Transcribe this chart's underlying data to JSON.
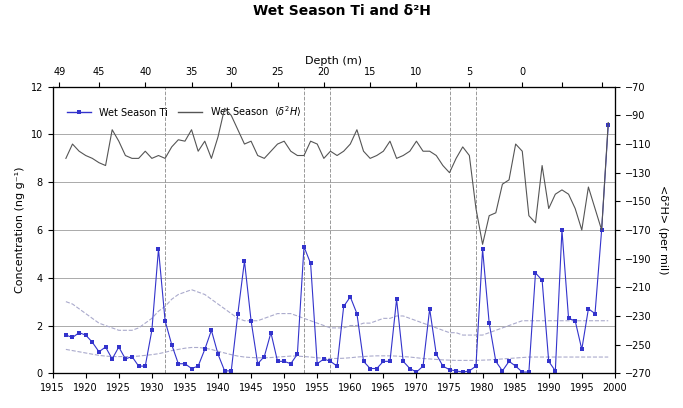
{
  "title": "Wet Season Ti and δ²H",
  "xlabel_top": "Depth (m)",
  "ylabel_left": "Concentration (ng g⁻¹)",
  "ylabel_right": "<δ²H> (per mil)",
  "xlim": [
    1915,
    2000
  ],
  "ylim_left": [
    0,
    12
  ],
  "ylim_right": [
    -270,
    -70
  ],
  "yticks_left": [
    0,
    2,
    4,
    6,
    8,
    10,
    12
  ],
  "yticks_right": [
    -270,
    -250,
    -230,
    -210,
    -190,
    -170,
    -150,
    -130,
    -110,
    -90,
    -70
  ],
  "xticks_bottom": [
    1915,
    1920,
    1925,
    1930,
    1935,
    1940,
    1945,
    1950,
    1955,
    1960,
    1965,
    1970,
    1975,
    1980,
    1985,
    1990,
    1995,
    2000
  ],
  "depth_tick_years": [
    1916,
    1922,
    1929,
    1936,
    1942,
    1949,
    1956,
    1963,
    1970,
    1978,
    1986,
    1992,
    1998
  ],
  "depth_tick_labels": [
    "49",
    "45",
    "40",
    "35",
    "30",
    "25",
    "20",
    "15",
    "10",
    "5",
    "0",
    "",
    ""
  ],
  "vlines": [
    1932,
    1953,
    1957,
    1975,
    1979
  ],
  "ti_color": "#3333cc",
  "d2h_color": "#555555",
  "envelope_color": "#aaaacc",
  "background_color": "#ffffff",
  "ti_years": [
    1917,
    1918,
    1919,
    1920,
    1921,
    1922,
    1923,
    1924,
    1925,
    1926,
    1927,
    1928,
    1929,
    1930,
    1931,
    1932,
    1933,
    1934,
    1935,
    1936,
    1937,
    1938,
    1939,
    1940,
    1941,
    1942,
    1943,
    1944,
    1945,
    1946,
    1947,
    1948,
    1949,
    1950,
    1951,
    1952,
    1953,
    1954,
    1955,
    1956,
    1957,
    1958,
    1959,
    1960,
    1961,
    1962,
    1963,
    1964,
    1965,
    1966,
    1967,
    1968,
    1969,
    1970,
    1971,
    1972,
    1973,
    1974,
    1975,
    1976,
    1977,
    1978,
    1979,
    1980,
    1981,
    1982,
    1983,
    1984,
    1985,
    1986,
    1987,
    1988,
    1989,
    1990,
    1991,
    1992,
    1993,
    1994,
    1995,
    1996,
    1997,
    1998,
    1999
  ],
  "ti_values": [
    1.6,
    1.5,
    1.7,
    1.6,
    1.3,
    0.9,
    1.1,
    0.6,
    1.1,
    0.6,
    0.7,
    0.3,
    0.3,
    1.8,
    5.2,
    2.2,
    1.2,
    0.4,
    0.4,
    0.2,
    0.3,
    1.0,
    1.8,
    0.8,
    0.1,
    0.1,
    2.5,
    4.7,
    2.2,
    0.4,
    0.7,
    1.7,
    0.5,
    0.5,
    0.4,
    0.8,
    5.3,
    4.6,
    0.4,
    0.6,
    0.5,
    0.3,
    2.8,
    3.2,
    2.5,
    0.5,
    0.2,
    0.2,
    0.5,
    0.5,
    3.1,
    0.5,
    0.2,
    0.05,
    0.3,
    2.7,
    0.8,
    0.3,
    0.15,
    0.1,
    0.05,
    0.1,
    0.3,
    5.2,
    2.1,
    0.5,
    0.1,
    0.5,
    0.3,
    0.05,
    0.05,
    4.2,
    3.9,
    0.5,
    0.1,
    6.0,
    2.3,
    2.2,
    1.0,
    2.7,
    2.5,
    6.0,
    10.4
  ],
  "d2h_years": [
    1917,
    1918,
    1919,
    1920,
    1921,
    1922,
    1923,
    1924,
    1925,
    1926,
    1927,
    1928,
    1929,
    1930,
    1931,
    1932,
    1933,
    1934,
    1935,
    1936,
    1937,
    1938,
    1939,
    1940,
    1941,
    1942,
    1943,
    1944,
    1945,
    1946,
    1947,
    1948,
    1949,
    1950,
    1951,
    1952,
    1953,
    1954,
    1955,
    1956,
    1957,
    1958,
    1959,
    1960,
    1961,
    1962,
    1963,
    1964,
    1965,
    1966,
    1967,
    1968,
    1969,
    1970,
    1971,
    1972,
    1973,
    1974,
    1975,
    1976,
    1977,
    1978,
    1979,
    1980,
    1981,
    1982,
    1983,
    1984,
    1985,
    1986,
    1987,
    1988,
    1989,
    1990,
    1991,
    1992,
    1993,
    1994,
    1995,
    1996,
    1997,
    1998,
    1999
  ],
  "d2h_values": [
    -120,
    -110,
    -115,
    -118,
    -120,
    -123,
    -125,
    -100,
    -108,
    -118,
    -120,
    -120,
    -115,
    -120,
    -118,
    -120,
    -112,
    -107,
    -108,
    -100,
    -115,
    -108,
    -120,
    -105,
    -85,
    -90,
    -100,
    -110,
    -108,
    -118,
    -120,
    -115,
    -110,
    -108,
    -115,
    -118,
    -118,
    -108,
    -110,
    -120,
    -115,
    -118,
    -115,
    -110,
    -100,
    -115,
    -120,
    -118,
    -115,
    -108,
    -120,
    -118,
    -115,
    -108,
    -115,
    -115,
    -118,
    -125,
    -130,
    -120,
    -112,
    -118,
    -155,
    -180,
    -160,
    -158,
    -138,
    -135,
    -110,
    -115,
    -160,
    -165,
    -125,
    -155,
    -145,
    -142,
    -145,
    -155,
    -170,
    -140,
    -155,
    -170,
    -95
  ],
  "envelope_upper": [
    3.0,
    2.9,
    2.7,
    2.5,
    2.3,
    2.1,
    2.0,
    1.9,
    1.8,
    1.8,
    1.8,
    1.9,
    2.1,
    2.3,
    2.6,
    2.8,
    3.1,
    3.3,
    3.4,
    3.5,
    3.4,
    3.3,
    3.1,
    2.9,
    2.7,
    2.5,
    2.3,
    2.2,
    2.2,
    2.2,
    2.3,
    2.4,
    2.5,
    2.5,
    2.5,
    2.4,
    2.3,
    2.2,
    2.1,
    2.0,
    1.9,
    1.9,
    1.9,
    2.0,
    2.0,
    2.1,
    2.1,
    2.2,
    2.3,
    2.3,
    2.4,
    2.4,
    2.3,
    2.2,
    2.1,
    2.0,
    1.9,
    1.8,
    1.7,
    1.7,
    1.6,
    1.6,
    1.6,
    1.6,
    1.7,
    1.8,
    1.9,
    2.0,
    2.1,
    2.2,
    2.2,
    2.2,
    2.2,
    2.2,
    2.2,
    2.2,
    2.2,
    2.2,
    2.2,
    2.2,
    2.2,
    2.2,
    2.2
  ],
  "envelope_lower": [
    1.0,
    0.95,
    0.9,
    0.85,
    0.8,
    0.75,
    0.72,
    0.7,
    0.7,
    0.7,
    0.7,
    0.72,
    0.75,
    0.78,
    0.82,
    0.88,
    0.95,
    1.0,
    1.05,
    1.08,
    1.08,
    1.05,
    1.0,
    0.92,
    0.85,
    0.78,
    0.72,
    0.68,
    0.66,
    0.65,
    0.65,
    0.66,
    0.68,
    0.7,
    0.72,
    0.72,
    0.7,
    0.68,
    0.65,
    0.63,
    0.62,
    0.62,
    0.63,
    0.65,
    0.68,
    0.7,
    0.72,
    0.73,
    0.73,
    0.73,
    0.72,
    0.7,
    0.68,
    0.65,
    0.62,
    0.6,
    0.58,
    0.56,
    0.55,
    0.54,
    0.54,
    0.54,
    0.54,
    0.55,
    0.56,
    0.58,
    0.6,
    0.62,
    0.64,
    0.66,
    0.68,
    0.68,
    0.68,
    0.68,
    0.68,
    0.68,
    0.68,
    0.68,
    0.68,
    0.68,
    0.68,
    0.68,
    0.68
  ]
}
